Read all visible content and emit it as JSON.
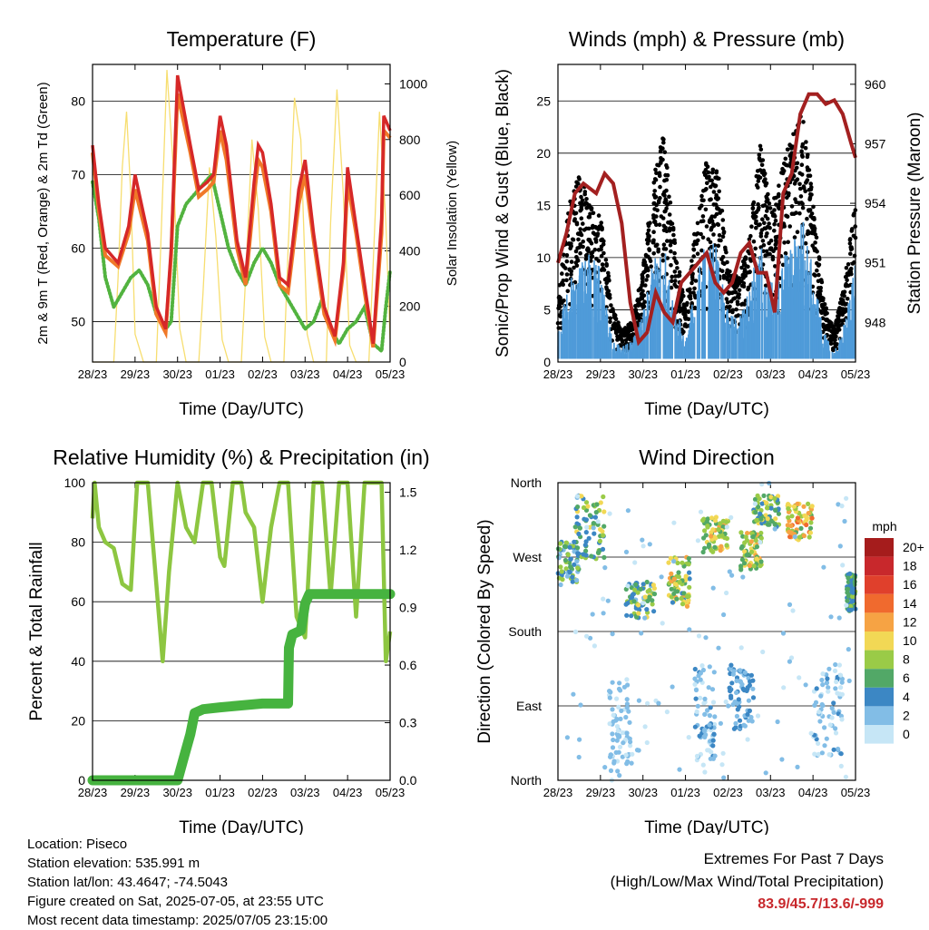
{
  "x_ticks": [
    "28/23",
    "29/23",
    "30/23",
    "01/23",
    "02/23",
    "03/23",
    "04/23",
    "05/23"
  ],
  "x_label": "Time (Day/UTC)",
  "chart_data": [
    {
      "type": "line",
      "title": "Temperature (F)",
      "xlabel": "Time (Day/UTC)",
      "ylabel": "2m & 9m T (Red, Orange) & 2m Td (Green)",
      "ylabel_right": "Solar Insolation (Yellow)",
      "ylim": [
        44.5,
        85
      ],
      "yticks": [
        50,
        60,
        70,
        80
      ],
      "ylim_right": [
        0,
        1070
      ],
      "yticks_right": [
        0,
        200,
        400,
        600,
        800,
        1000
      ],
      "colors": {
        "t2m": "#d62828",
        "t9m": "#f07828",
        "td": "#52b33f",
        "solar": "#f7de70"
      },
      "series": [
        {
          "key": "t2m",
          "x": [
            0,
            0.15,
            0.3,
            0.6,
            0.85,
            1.0,
            1.3,
            1.5,
            1.72,
            1.85,
            2.0,
            2.3,
            2.5,
            2.7,
            2.85,
            3.0,
            3.15,
            3.4,
            3.6,
            3.8,
            3.9,
            4.0,
            4.2,
            4.4,
            4.6,
            4.85,
            5.0,
            5.2,
            5.45,
            5.7,
            5.9,
            6.0,
            6.2,
            6.4,
            6.6,
            6.8,
            6.85,
            7.0
          ],
          "values": [
            74,
            66,
            60,
            58,
            63,
            70,
            62,
            52,
            49,
            60,
            83.5,
            74,
            68,
            69,
            70,
            78,
            74,
            61,
            56,
            69,
            74,
            73,
            66,
            56,
            55,
            68,
            72,
            62,
            52,
            48,
            58,
            71,
            63,
            55,
            47,
            64,
            78,
            76
          ]
        },
        {
          "key": "t9m",
          "x": [
            0,
            0.15,
            0.3,
            0.6,
            0.85,
            1.0,
            1.3,
            1.5,
            1.72,
            1.85,
            2.0,
            2.3,
            2.5,
            2.7,
            2.85,
            3.0,
            3.15,
            3.4,
            3.6,
            3.8,
            3.9,
            4.0,
            4.2,
            4.4,
            4.6,
            4.85,
            5.0,
            5.2,
            5.45,
            5.7,
            5.9,
            6.0,
            6.2,
            6.4,
            6.6,
            6.8,
            6.85,
            7.0
          ],
          "values": [
            73,
            65,
            59,
            57.5,
            62,
            68,
            61,
            51,
            48.5,
            59,
            81,
            73,
            67,
            68,
            69,
            76,
            72,
            60,
            55,
            67,
            72,
            71,
            65,
            55,
            54,
            66,
            70,
            61,
            51,
            47.5,
            57,
            69,
            62,
            54,
            46.5,
            62,
            76,
            75
          ]
        },
        {
          "key": "td",
          "x": [
            0,
            0.15,
            0.3,
            0.5,
            0.7,
            0.9,
            1.1,
            1.3,
            1.5,
            1.72,
            1.85,
            2.0,
            2.2,
            2.5,
            2.8,
            3.0,
            3.2,
            3.4,
            3.6,
            3.8,
            4.0,
            4.2,
            4.4,
            4.6,
            4.8,
            5.0,
            5.2,
            5.4,
            5.6,
            5.8,
            6.0,
            6.2,
            6.4,
            6.6,
            6.8,
            6.9,
            7.0
          ],
          "values": [
            69,
            64,
            56,
            52,
            54,
            56,
            57,
            55,
            51,
            49,
            50,
            63,
            66,
            68,
            70,
            65,
            60,
            57,
            55,
            58,
            60,
            58,
            55,
            53,
            51,
            49,
            50,
            53,
            49,
            47,
            49,
            50,
            52,
            47,
            46,
            52,
            57
          ]
        },
        {
          "key": "solar",
          "x": [
            0,
            0.3,
            0.5,
            0.6,
            0.7,
            0.8,
            0.9,
            1.0,
            1.2,
            1.5,
            1.6,
            1.75,
            1.9,
            2.05,
            2.2,
            2.5,
            2.6,
            2.75,
            2.9,
            3.05,
            3.2,
            3.5,
            3.6,
            3.75,
            3.9,
            4.05,
            4.2,
            4.5,
            4.6,
            4.75,
            4.9,
            5.05,
            5.2,
            5.5,
            5.6,
            5.75,
            5.9,
            6.05,
            6.2,
            6.5,
            6.6,
            6.75,
            6.9,
            7.0
          ],
          "values": [
            0,
            0,
            0,
            300,
            700,
            900,
            600,
            100,
            0,
            0,
            400,
            1050,
            700,
            120,
            0,
            0,
            250,
            700,
            450,
            80,
            0,
            0,
            300,
            800,
            550,
            90,
            0,
            0,
            400,
            950,
            800,
            100,
            0,
            0,
            500,
            980,
            600,
            60,
            0,
            0,
            350,
            900,
            500,
            80
          ]
        }
      ]
    },
    {
      "type": "scatter",
      "title": "Winds (mph) & Pressure (mb)",
      "xlabel": "Time (Day/UTC)",
      "ylabel": "Sonic/Prop Wind & Gust (Blue, Black)",
      "ylabel_right": "Station Pressure (Maroon)",
      "ylim": [
        0,
        28.5
      ],
      "yticks": [
        0,
        5,
        10,
        15,
        20,
        25
      ],
      "ylim_right": [
        946.0,
        961.0
      ],
      "yticks_right": [
        948,
        951,
        954,
        957,
        960
      ],
      "colors": {
        "wind": "#4f9bd9",
        "gust": "#000000",
        "pressure": "#a32020"
      },
      "series": [
        {
          "key": "wind_envelope",
          "x": [
            0,
            0.25,
            0.5,
            0.7,
            1.0,
            1.3,
            1.5,
            1.75,
            2.0,
            2.25,
            2.5,
            2.75,
            3.0,
            3.25,
            3.5,
            3.75,
            4.0,
            4.25,
            4.5,
            4.75,
            5.0,
            5.25,
            5.5,
            5.75,
            6.0,
            6.25,
            6.5,
            6.75,
            7.0
          ],
          "values": [
            3,
            8,
            9,
            11,
            9,
            2,
            1.5,
            2,
            5,
            10,
            11,
            6,
            2,
            8,
            12,
            11,
            5,
            4,
            7,
            12,
            8,
            10,
            11,
            14,
            9,
            3,
            1,
            4,
            10
          ]
        },
        {
          "key": "gust_envelope",
          "x": [
            0,
            0.25,
            0.5,
            0.7,
            1.0,
            1.3,
            1.5,
            1.75,
            2.0,
            2.25,
            2.5,
            2.75,
            3.0,
            3.25,
            3.5,
            3.75,
            4.0,
            4.25,
            4.5,
            4.75,
            5.0,
            5.25,
            5.5,
            5.75,
            6.0,
            6.25,
            6.5,
            6.75,
            7.0
          ],
          "values": [
            6,
            15,
            18,
            16,
            14,
            5,
            3,
            4,
            9,
            18,
            22,
            12,
            5,
            14,
            20,
            19,
            9,
            8,
            12,
            21,
            15,
            18,
            22,
            24,
            16,
            6,
            3,
            8,
            16
          ]
        },
        {
          "key": "pressure",
          "x": [
            0,
            0.2,
            0.4,
            0.6,
            0.9,
            1.1,
            1.3,
            1.5,
            1.7,
            1.9,
            2.1,
            2.3,
            2.5,
            2.7,
            2.9,
            3.1,
            3.3,
            3.5,
            3.7,
            3.9,
            4.1,
            4.3,
            4.5,
            4.7,
            4.9,
            5.1,
            5.3,
            5.5,
            5.7,
            5.9,
            6.1,
            6.3,
            6.5,
            6.7,
            6.9,
            7.0
          ],
          "values": [
            951,
            952.5,
            954.5,
            955.0,
            954.5,
            955.5,
            955.0,
            953.0,
            949.0,
            947.0,
            947.5,
            949.5,
            948.5,
            948.0,
            950.0,
            950.5,
            951.0,
            951.5,
            950.0,
            949.5,
            950.0,
            951.5,
            952.0,
            950.5,
            950.5,
            948.5,
            954.5,
            955.5,
            958.5,
            959.5,
            959.5,
            959.0,
            959.2,
            958.5,
            957.0,
            956.3
          ]
        }
      ]
    },
    {
      "type": "line",
      "title": "Relative Humidity (%) & Precipitation (in)",
      "xlabel": "Time (Day/UTC)",
      "ylabel": "Percent & Total Rainfall",
      "ylim": [
        0,
        100
      ],
      "yticks": [
        0,
        20,
        40,
        60,
        80,
        100
      ],
      "ylim_right": [
        0,
        1.55
      ],
      "yticks_right": [
        "0.0",
        "0.3",
        "0.6",
        "0.9",
        "1.2",
        "1.5"
      ],
      "colors": {
        "rh": "#8dc641",
        "precip": "#46b33f"
      },
      "series": [
        {
          "key": "rh",
          "x": [
            0,
            0.05,
            0.15,
            0.3,
            0.5,
            0.7,
            0.9,
            1.05,
            1.3,
            1.5,
            1.65,
            1.8,
            2.0,
            2.2,
            2.4,
            2.6,
            2.8,
            3.0,
            3.1,
            3.3,
            3.5,
            3.6,
            3.8,
            4.0,
            4.2,
            4.4,
            4.6,
            4.8,
            5.0,
            5.2,
            5.4,
            5.6,
            5.8,
            6.0,
            6.2,
            6.4,
            6.6,
            6.8,
            6.9,
            7.0
          ],
          "values": [
            88,
            100,
            85,
            80,
            78,
            66,
            64,
            100,
            100,
            66,
            40,
            70,
            100,
            85,
            80,
            100,
            100,
            75,
            72,
            100,
            100,
            90,
            85,
            60,
            85,
            100,
            100,
            55,
            48,
            100,
            100,
            62,
            100,
            100,
            55,
            100,
            100,
            100,
            40,
            50
          ]
        },
        {
          "key": "precip",
          "x": [
            0,
            1.0,
            2.0,
            2.15,
            2.3,
            2.4,
            2.6,
            3.0,
            4.0,
            4.6,
            4.62,
            4.7,
            4.9,
            5.0,
            5.1,
            5.3,
            6.0,
            7.0
          ],
          "values": [
            0,
            0,
            0,
            0.12,
            0.24,
            0.35,
            0.37,
            0.38,
            0.4,
            0.4,
            0.69,
            0.76,
            0.78,
            0.92,
            0.97,
            0.97,
            0.97,
            0.97
          ]
        }
      ]
    },
    {
      "type": "scatter",
      "title": "Wind Direction",
      "xlabel": "Time (Day/UTC)",
      "ylabel": "Direction (Colored By Speed)",
      "ylim": [
        0,
        360
      ],
      "yticks": [
        "North",
        "East",
        "South",
        "West",
        "North"
      ],
      "colorbar": {
        "title": "mph",
        "labels": [
          "20+",
          "18",
          "16",
          "14",
          "12",
          "10",
          "8",
          "6",
          "4",
          "2",
          "0"
        ],
        "colors": [
          "#a51c1c",
          "#c8282c",
          "#e0402c",
          "#f06a2e",
          "#f6a344",
          "#f2d855",
          "#9acb47",
          "#52a867",
          "#3c87c4",
          "#82bde6",
          "#c6e6f6"
        ]
      },
      "clusters": [
        {
          "x": [
            0,
            0.5
          ],
          "dir": [
            240,
            290
          ],
          "speed": [
            2,
            9
          ]
        },
        {
          "x": [
            0.4,
            1.1
          ],
          "dir": [
            265,
            345
          ],
          "speed": [
            3,
            10
          ]
        },
        {
          "x": [
            1.6,
            2.3
          ],
          "dir": [
            195,
            240
          ],
          "speed": [
            2,
            10
          ]
        },
        {
          "x": [
            2.6,
            3.1
          ],
          "dir": [
            210,
            270
          ],
          "speed": [
            4,
            12
          ]
        },
        {
          "x": [
            3.4,
            4.0
          ],
          "dir": [
            275,
            320
          ],
          "speed": [
            5,
            12
          ]
        },
        {
          "x": [
            4.3,
            4.8
          ],
          "dir": [
            250,
            300
          ],
          "speed": [
            5,
            12
          ]
        },
        {
          "x": [
            4.6,
            5.2
          ],
          "dir": [
            305,
            345
          ],
          "speed": [
            4,
            10
          ]
        },
        {
          "x": [
            5.4,
            6.0
          ],
          "dir": [
            290,
            335
          ],
          "speed": [
            6,
            15
          ]
        },
        {
          "x": [
            6.8,
            7.0
          ],
          "dir": [
            205,
            250
          ],
          "speed": [
            3,
            8
          ]
        },
        {
          "x": [
            1.2,
            1.7
          ],
          "dir": [
            10,
            120
          ],
          "speed": [
            0,
            3
          ]
        },
        {
          "x": [
            3.2,
            3.7
          ],
          "dir": [
            20,
            140
          ],
          "speed": [
            0,
            4
          ]
        },
        {
          "x": [
            4.0,
            4.6
          ],
          "dir": [
            60,
            140
          ],
          "speed": [
            1,
            5
          ]
        },
        {
          "x": [
            6.0,
            6.7
          ],
          "dir": [
            30,
            140
          ],
          "speed": [
            0,
            4
          ]
        },
        {
          "x": [
            0,
            7.0
          ],
          "dir": [
            0,
            360
          ],
          "speed": [
            0,
            2
          ]
        }
      ]
    }
  ],
  "info": {
    "location": "Location: Piseco",
    "elevation": "Station elevation: 535.991 m",
    "latlon": "Station lat/lon: 43.4647; -74.5043",
    "created": "Figure created on Sat, 2025-07-05, at 23:55 UTC",
    "recent": "Most recent data timestamp: 2025/07/05 23:15:00"
  },
  "extremes": {
    "title": "Extremes For Past 7 Days",
    "subtitle": "(High/Low/Max Wind/Total Precipitation)",
    "values": "83.9/45.7/13.6/-999"
  }
}
